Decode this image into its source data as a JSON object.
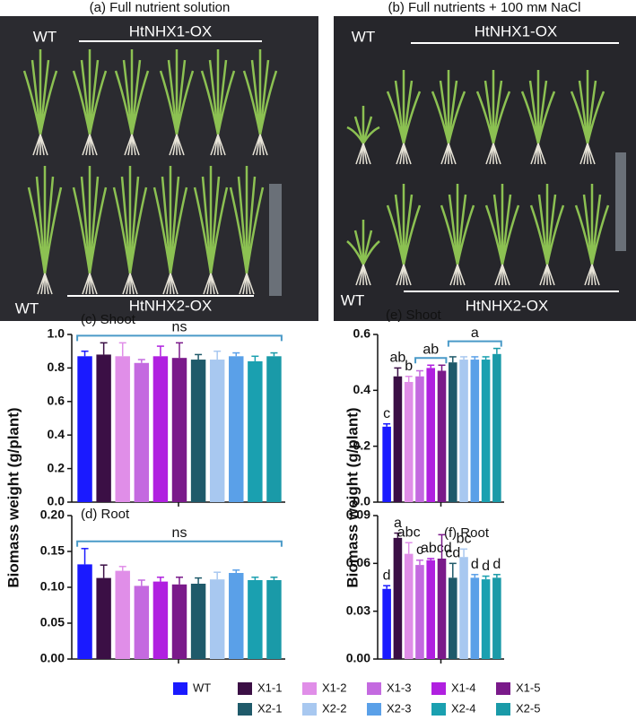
{
  "photos": [
    {
      "caption": "(a) Full nutrient solution",
      "labels": [
        "WT",
        "HtNHX1-OX",
        "WT",
        "HtNHX2-OX"
      ]
    },
    {
      "caption": "(b) Full nutrients + 100 mᴍ NaCl",
      "labels": [
        "WT",
        "HtNHX1-OX",
        "WT",
        "HtNHX2-OX"
      ]
    }
  ],
  "legend": {
    "items": [
      "WT",
      "X1-1",
      "X1-2",
      "X1-3",
      "X1-4",
      "X1-5",
      "X2-1",
      "X2-2",
      "X2-3",
      "X2-4",
      "X2-5"
    ],
    "colors": [
      "#1a1aff",
      "#3b0f45",
      "#e08ee8",
      "#c46ae0",
      "#b020e0",
      "#7a1a8a",
      "#1f5a6a",
      "#a8c8f0",
      "#5aa0e8",
      "#1aa0b0",
      "#1a9aa8"
    ]
  },
  "chart_data": [
    {
      "type": "bar",
      "title": "(c) Shoot",
      "ylabel": "Biomass weight (g/plant)",
      "values": [
        0.87,
        0.88,
        0.87,
        0.83,
        0.87,
        0.86,
        0.85,
        0.85,
        0.87,
        0.84,
        0.87
      ],
      "errors": [
        0.03,
        0.07,
        0.08,
        0.02,
        0.06,
        0.09,
        0.03,
        0.05,
        0.02,
        0.03,
        0.02
      ],
      "ylim": [
        0,
        1.0
      ],
      "yticks": [
        {
          "value": 0,
          "label": "0.0"
        },
        0.2,
        0.4,
        0.6,
        0.8,
        {
          "value": 1.0,
          "label": "1.0"
        }
      ],
      "brackets": [
        "ns"
      ]
    },
    {
      "type": "bar",
      "title": "(d) Root",
      "values": [
        0.132,
        0.113,
        0.123,
        0.102,
        0.108,
        0.104,
        0.105,
        0.111,
        0.12,
        0.11,
        0.11
      ],
      "errors": [
        0.022,
        0.018,
        0.006,
        0.008,
        0.006,
        0.01,
        0.008,
        0.01,
        0.004,
        0.004,
        0.004
      ],
      "ylim": [
        0,
        0.2
      ],
      "yticks": [
        {
          "value": 0,
          "label": "0.00"
        },
        0.05,
        {
          "value": 0.1,
          "label": "0.10"
        },
        0.15,
        {
          "value": 0.2,
          "label": "0.20"
        }
      ],
      "brackets": [
        "ns"
      ]
    },
    {
      "type": "bar",
      "title": "(e) Shoot",
      "ylabel": "Biomass weight (g/plant)",
      "values": [
        0.27,
        0.45,
        0.43,
        0.45,
        0.48,
        0.47,
        0.5,
        0.51,
        0.51,
        0.51,
        0.53
      ],
      "errors": [
        0.01,
        0.03,
        0.02,
        0.02,
        0.01,
        0.02,
        0.02,
        0.01,
        0.01,
        0.01,
        0.02
      ],
      "ylim": [
        0,
        0.6
      ],
      "yticks": [
        {
          "value": 0,
          "label": "0.0"
        },
        0.2,
        0.4,
        0.6
      ],
      "letters": [
        "c",
        "ab",
        "b",
        null,
        null,
        null,
        null,
        null,
        null,
        null,
        null
      ],
      "brackets": [
        "ab",
        "a"
      ]
    },
    {
      "type": "bar",
      "title": "(f) Root",
      "values": [
        0.044,
        0.076,
        0.066,
        0.059,
        0.062,
        0.063,
        0.051,
        0.064,
        0.051,
        0.05,
        0.051
      ],
      "errors": [
        0.002,
        0.003,
        0.007,
        0.003,
        0.001,
        0.015,
        0.009,
        0.005,
        0.002,
        0.002,
        0.002
      ],
      "ylim": [
        0,
        0.09
      ],
      "yticks": [
        {
          "value": 0,
          "label": "0.00"
        },
        0.03,
        0.06,
        0.09
      ],
      "letters": [
        "d",
        "a",
        "abc",
        "c",
        "abcd",
        null,
        "cd",
        "bc",
        "d",
        "d",
        "d"
      ],
      "brackets": []
    }
  ]
}
